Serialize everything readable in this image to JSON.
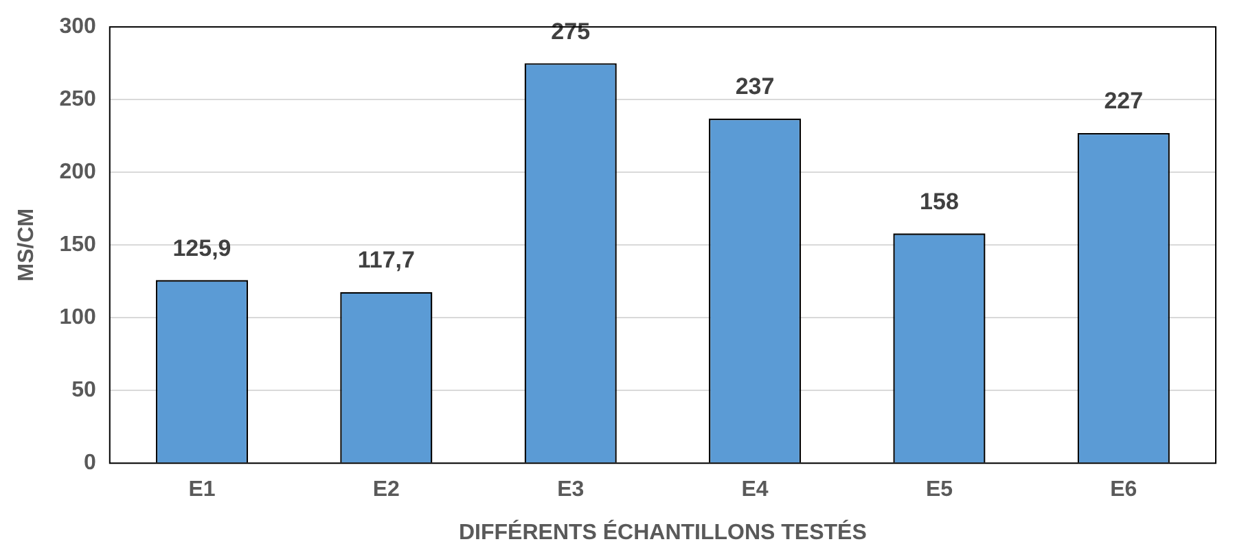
{
  "chart_data": {
    "type": "bar",
    "xlabel": "DIFFÉRENTS ÉCHANTILLONS TESTÉS",
    "ylabel": "MS/CM",
    "categories": [
      "E1",
      "E2",
      "E3",
      "E4",
      "E5",
      "E6"
    ],
    "values": [
      125.9,
      117.7,
      275,
      237,
      158,
      227
    ],
    "value_labels": [
      "125,9",
      "117,7",
      "275",
      "237",
      "158",
      "227"
    ],
    "color": "#5b9bd5",
    "ylim": [
      0,
      300
    ],
    "yticks": [
      0,
      50,
      100,
      150,
      200,
      250,
      300
    ],
    "grid": "y"
  }
}
